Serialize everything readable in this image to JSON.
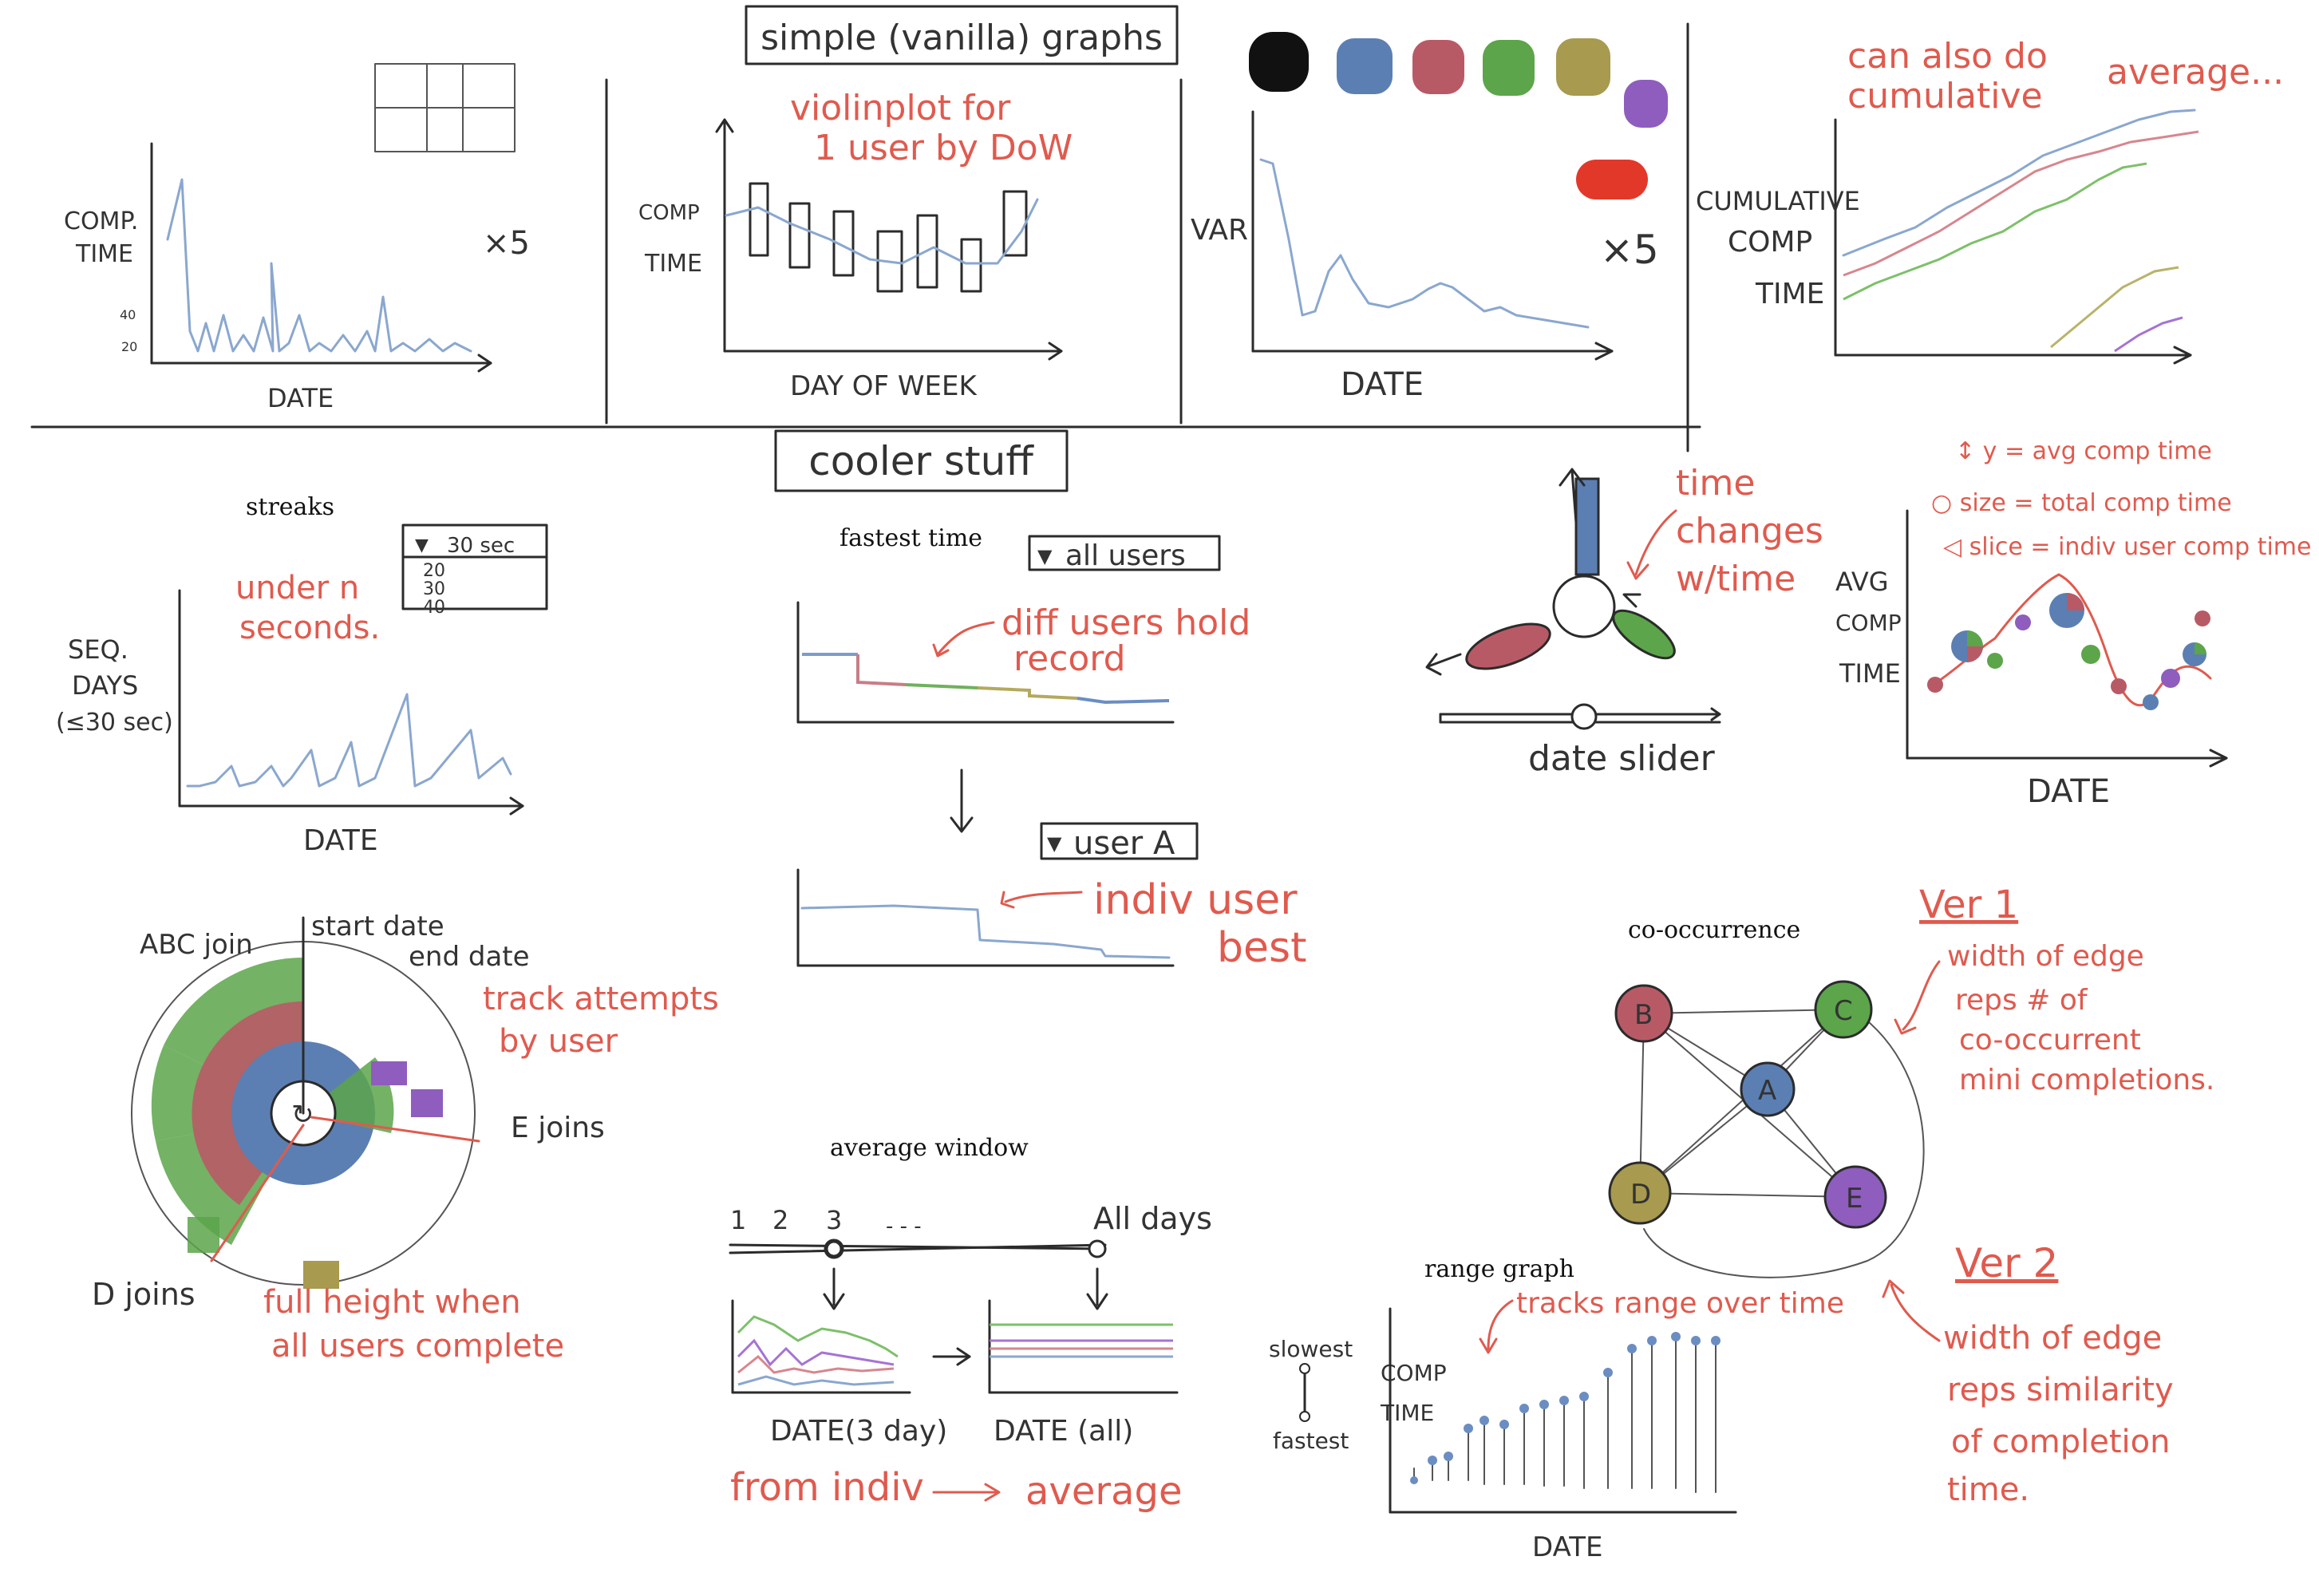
{
  "colors": {
    "black": "#111111",
    "blue": "#5b7fb2",
    "red_brown": "#b85a66",
    "green": "#5ca54a",
    "olive": "#a89a4e",
    "purple": "#8e5dbd",
    "bright_red": "#e2382a",
    "annotation_red": "#e05a4e",
    "line_blue": "#8aa7cf"
  },
  "sections": {
    "top_title": "simple (vanilla) graphs",
    "bottom_title": "cooler stuff"
  },
  "panel_comp_time": {
    "ylabel_1": "COMP.",
    "ylabel_2": "TIME",
    "tick_40": "40",
    "tick_20": "20",
    "xlabel": "DATE",
    "multiplier": "×5"
  },
  "panel_violin": {
    "note_1": "violinplot for",
    "note_2": "1 user by DoW",
    "ylabel_1": "COMP",
    "ylabel_2": "TIME",
    "xlabel": "DAY OF WEEK"
  },
  "panel_var": {
    "ylabel": "VAR",
    "xlabel": "DATE",
    "multiplier": "×5"
  },
  "panel_cumulative": {
    "note_1": "can also do",
    "note_2": "cumulative",
    "note_3": "average...",
    "ylabel_1": "CUMULATIVE",
    "ylabel_2": "COMP",
    "ylabel_3": "TIME"
  },
  "streaks": {
    "title": "streaks",
    "dropdown_value": "30 sec",
    "dropdown_options": [
      "20",
      "30",
      "40"
    ],
    "note_1": "under n",
    "note_2": "seconds.",
    "ylabel_1": "SEQ.",
    "ylabel_2": "DAYS",
    "ylabel_3": "(≤30 sec)",
    "xlabel": "DATE"
  },
  "fastest_time": {
    "title": "fastest time",
    "dropdown_all": "all users",
    "note_1": "diff users hold",
    "note_2": "record",
    "dropdown_user": "user A",
    "note_3": "indiv user",
    "note_4": "best"
  },
  "radial": {
    "label_abc": "ABC join",
    "label_start": "start date",
    "label_end": "end date",
    "note_1": "track attempts",
    "note_2": "by user",
    "label_e": "E joins",
    "label_d": "D joins",
    "note_3": "full height when",
    "note_4": "all users complete"
  },
  "average_window": {
    "title": "average window",
    "ticks": [
      "1",
      "2",
      "3",
      "- - -"
    ],
    "all_days": "All days",
    "xlabel_left": "DATE(3 day)",
    "xlabel_right": "DATE (all)",
    "note_from": "from indiv",
    "note_to": "average"
  },
  "pinwheel": {
    "note_1": "time",
    "note_2": "changes",
    "note_3": "w/time",
    "slider_label": "date slider"
  },
  "pie_scatter": {
    "legend_1": "↕ y = avg comp time",
    "legend_2": "○ size = total comp time",
    "legend_3": "◁ slice = indiv user comp time",
    "ylabel_1": "AVG",
    "ylabel_2": "COMP",
    "ylabel_3": "TIME",
    "xlabel": "DATE"
  },
  "co_occurrence": {
    "title": "co-occurrence",
    "nodes": [
      "B",
      "C",
      "A",
      "D",
      "E"
    ],
    "ver1": "Ver 1",
    "ver1_note_1": "width of edge",
    "ver1_note_2": "reps # of",
    "ver1_note_3": "co-occurrent",
    "ver1_note_4": "mini completions.",
    "ver2": "Ver 2",
    "ver2_note_1": "width of edge",
    "ver2_note_2": "reps similarity",
    "ver2_note_3": "of completion",
    "ver2_note_4": "time."
  },
  "range_graph": {
    "title": "range graph",
    "note": "tracks range over time",
    "legend_slowest": "slowest",
    "legend_fastest": "fastest",
    "ylabel_1": "COMP",
    "ylabel_2": "TIME",
    "xlabel": "DATE"
  }
}
